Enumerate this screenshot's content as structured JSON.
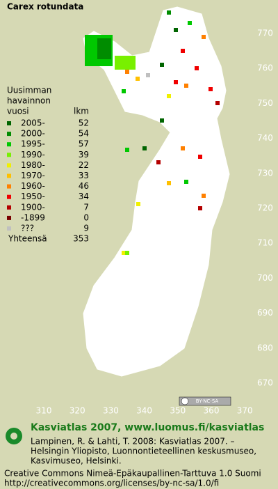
{
  "header": {
    "title": "Carex rotundata"
  },
  "legend": {
    "heading": [
      "Uusimman",
      "havainnon",
      "vuosi"
    ],
    "count_heading": "lkm",
    "rows": [
      {
        "label": "2005-",
        "count": 52,
        "color": "#006400"
      },
      {
        "label": "2000-",
        "count": 54,
        "color": "#008c00"
      },
      {
        "label": "1995-",
        "count": 57,
        "color": "#00c800"
      },
      {
        "label": "1990-",
        "count": 39,
        "color": "#78f000"
      },
      {
        "label": "1980-",
        "count": 22,
        "color": "#f0f000"
      },
      {
        "label": "1970-",
        "count": 33,
        "color": "#ffc000"
      },
      {
        "label": "1960-",
        "count": 46,
        "color": "#ff8000"
      },
      {
        "label": "1950-",
        "count": 34,
        "color": "#f00000"
      },
      {
        "label": "1900-",
        "count": 7,
        "color": "#b40000"
      },
      {
        "label": "-1899",
        "count": 0,
        "color": "#780000"
      },
      {
        "label": "???",
        "count": 9,
        "color": "#c0c0c0"
      }
    ],
    "total_label": "Yhteensä",
    "total": 353
  },
  "axes": {
    "y_labels": [
      770,
      760,
      750,
      740,
      730,
      720,
      710,
      700,
      690,
      680,
      670
    ],
    "x_labels": [
      310,
      320,
      330,
      340,
      350,
      360,
      370
    ]
  },
  "footer": {
    "badge": "BY-NC-SA",
    "site": "Kasviatlas 2007, www.luomus.fi/kasviatlas",
    "citation": [
      "Lampinen, R. & Lahti, T. 2008: Kasviatlas 2007. –",
      "Helsingin Yliopisto, Luonnontieteellinen keskusmuseo,",
      "Kasvimuseo, Helsinki."
    ],
    "license": [
      "Creative Commons Nimeä-Epäkaupallinen-Tarttuva 1.0 Suomi",
      "http://creativecommons.org/licenses/by-nc-sa/1.0/fi"
    ]
  }
}
